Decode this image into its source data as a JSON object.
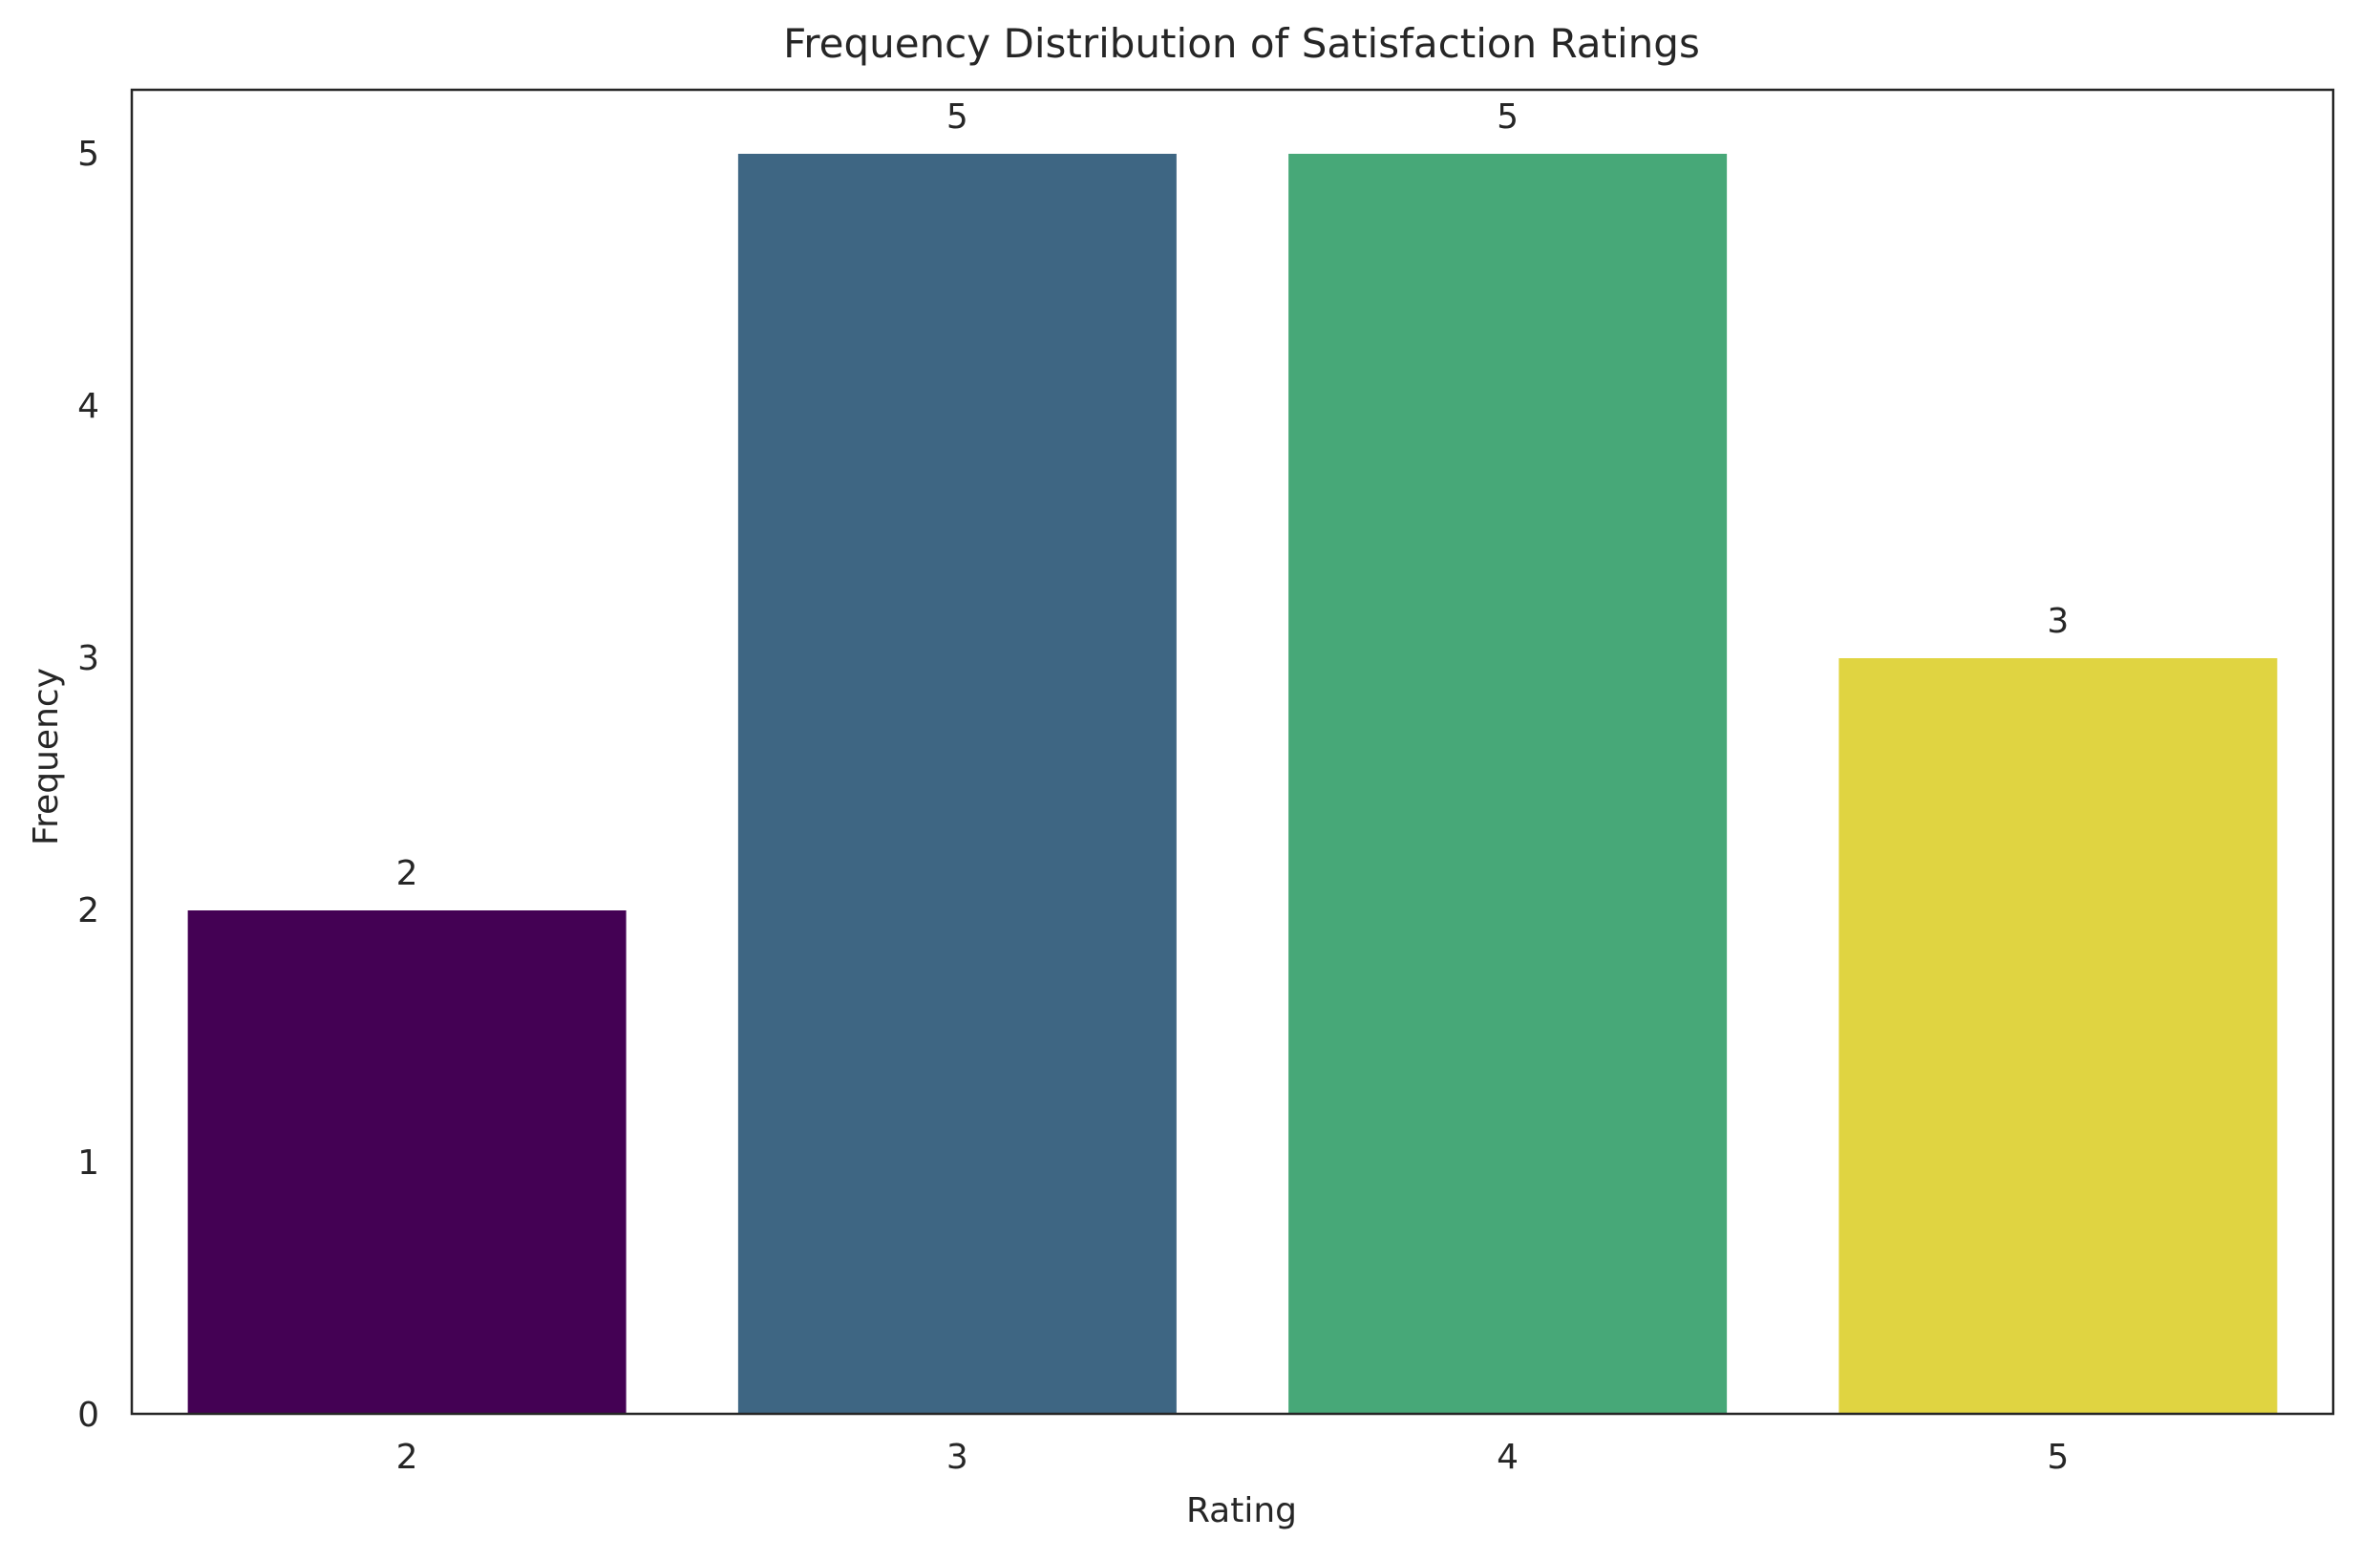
{
  "chart_data": {
    "type": "bar",
    "title": "Frequency Distribution of Satisfaction Ratings",
    "xlabel": "Rating",
    "ylabel": "Frequency",
    "categories": [
      "2",
      "3",
      "4",
      "5"
    ],
    "values": [
      2,
      5,
      5,
      3
    ],
    "data_labels": [
      "2",
      "5",
      "5",
      "3"
    ],
    "colors": [
      "#440154",
      "#3e6683",
      "#47a878",
      "#e0d441"
    ],
    "ylim": [
      0,
      5.25
    ],
    "yticks": [
      0,
      1,
      2,
      3,
      4,
      5
    ],
    "ytick_labels": [
      "0",
      "1",
      "2",
      "3",
      "4",
      "5"
    ],
    "grid": false,
    "legend": "none"
  }
}
